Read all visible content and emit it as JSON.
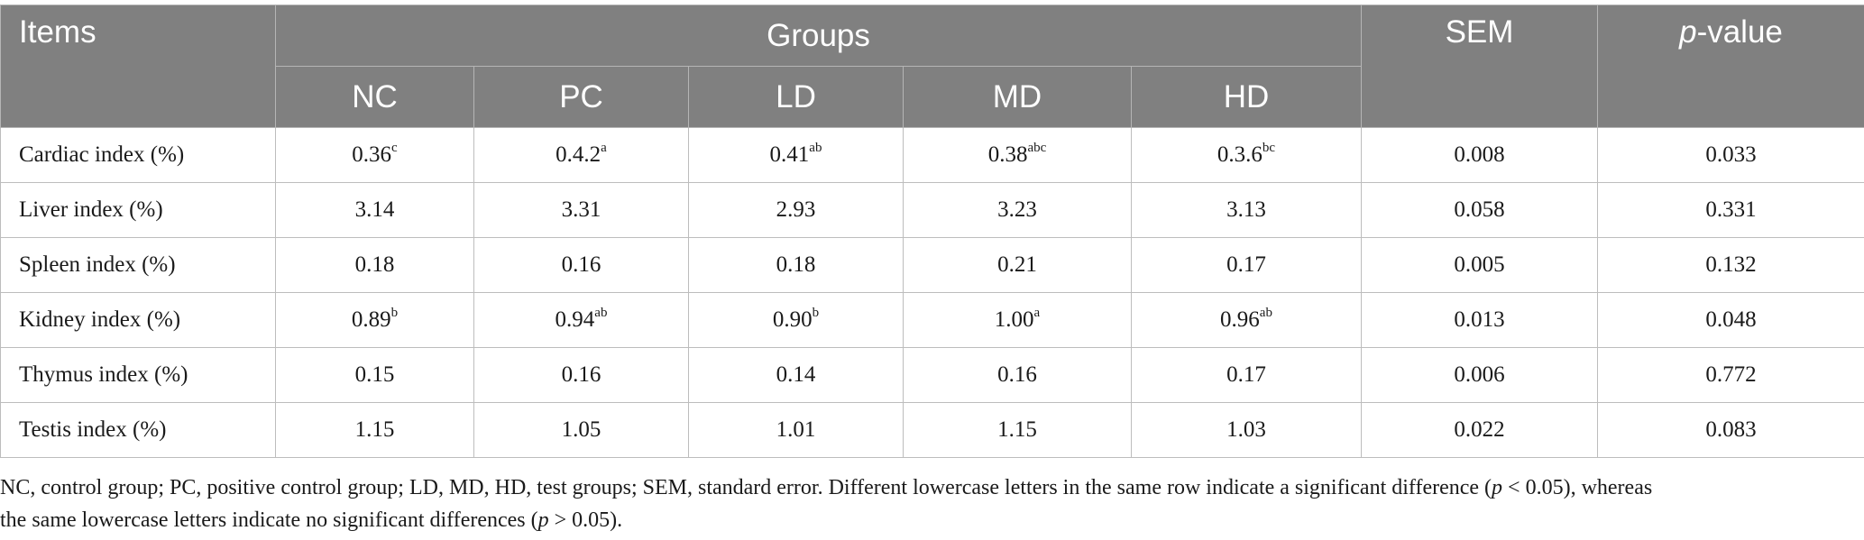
{
  "header": {
    "items": "Items",
    "groups": "Groups",
    "sem": "SEM",
    "pvalue_italic": "p",
    "pvalue_rest": "-value",
    "subgroups": [
      "NC",
      "PC",
      "LD",
      "MD",
      "HD"
    ]
  },
  "rows": [
    {
      "label": "Cardiac index (%)",
      "cells": [
        {
          "v": "0.36",
          "s": "c"
        },
        {
          "v": "0.4.2",
          "s": "a"
        },
        {
          "v": "0.41",
          "s": "ab"
        },
        {
          "v": "0.38",
          "s": "abc"
        },
        {
          "v": "0.3.6",
          "s": "bc"
        }
      ],
      "sem": "0.008",
      "p": "0.033"
    },
    {
      "label": "Liver index (%)",
      "cells": [
        {
          "v": "3.14",
          "s": ""
        },
        {
          "v": "3.31",
          "s": ""
        },
        {
          "v": "2.93",
          "s": ""
        },
        {
          "v": "3.23",
          "s": ""
        },
        {
          "v": "3.13",
          "s": ""
        }
      ],
      "sem": "0.058",
      "p": "0.331"
    },
    {
      "label": "Spleen index (%)",
      "cells": [
        {
          "v": "0.18",
          "s": ""
        },
        {
          "v": "0.16",
          "s": ""
        },
        {
          "v": "0.18",
          "s": ""
        },
        {
          "v": "0.21",
          "s": ""
        },
        {
          "v": "0.17",
          "s": ""
        }
      ],
      "sem": "0.005",
      "p": "0.132"
    },
    {
      "label": "Kidney index (%)",
      "cells": [
        {
          "v": "0.89",
          "s": "b"
        },
        {
          "v": "0.94",
          "s": "ab"
        },
        {
          "v": "0.90",
          "s": "b"
        },
        {
          "v": "1.00",
          "s": "a"
        },
        {
          "v": "0.96",
          "s": "ab"
        }
      ],
      "sem": "0.013",
      "p": "0.048"
    },
    {
      "label": "Thymus index (%)",
      "cells": [
        {
          "v": "0.15",
          "s": ""
        },
        {
          "v": "0.16",
          "s": ""
        },
        {
          "v": "0.14",
          "s": ""
        },
        {
          "v": "0.16",
          "s": ""
        },
        {
          "v": "0.17",
          "s": ""
        }
      ],
      "sem": "0.006",
      "p": "0.772"
    },
    {
      "label": "Testis index (%)",
      "cells": [
        {
          "v": "1.15",
          "s": ""
        },
        {
          "v": "1.05",
          "s": ""
        },
        {
          "v": "1.01",
          "s": ""
        },
        {
          "v": "1.15",
          "s": ""
        },
        {
          "v": "1.03",
          "s": ""
        }
      ],
      "sem": "0.022",
      "p": "0.083"
    }
  ],
  "footnote": {
    "part1": "NC, control group; PC, positive control group; LD, MD, HD, test groups; SEM, standard error. Different lowercase letters in the same row indicate a significant difference (",
    "p1": "p",
    "part2": " < 0.05), whereas",
    "part3": "the same lowercase letters indicate no significant differences (",
    "p2": "p",
    "part4": " > 0.05)."
  }
}
